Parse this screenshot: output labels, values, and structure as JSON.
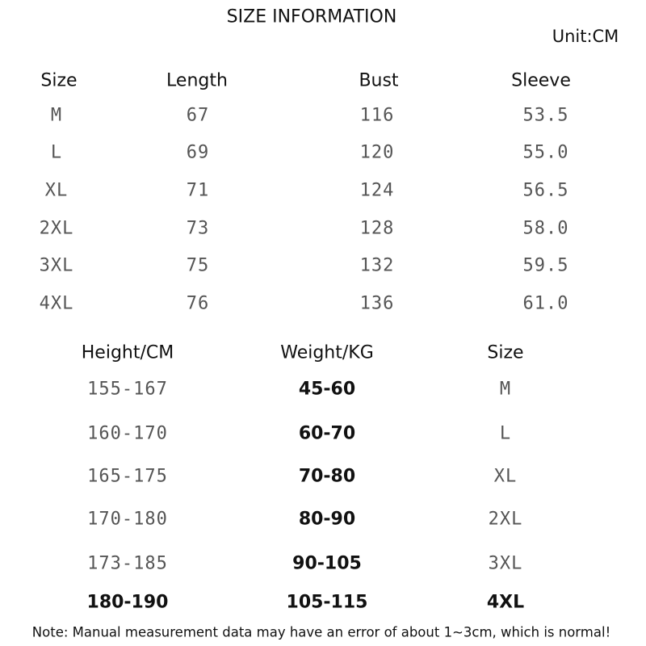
{
  "header": {
    "title": "SIZE INFORMATION",
    "unit": "Unit:CM"
  },
  "table": {
    "columns": [
      "Size",
      "Length",
      "Bust",
      "Sleeve"
    ],
    "rows": [
      [
        "M",
        "67",
        "116",
        "53.5"
      ],
      [
        "L",
        "69",
        "120",
        "55.0"
      ],
      [
        "XL",
        "71",
        "124",
        "56.5"
      ],
      [
        "2XL",
        "73",
        "128",
        "58.0"
      ],
      [
        "3XL",
        "75",
        "132",
        "59.5"
      ],
      [
        "4XL",
        "76",
        "136",
        "61.0"
      ]
    ]
  },
  "guide": {
    "columns": [
      "Height/CM",
      "Weight/KG",
      "Size"
    ],
    "rows": [
      [
        "155-167",
        "45-60",
        "M"
      ],
      [
        "160-170",
        "60-70",
        "L"
      ],
      [
        "165-175",
        "70-80",
        "XL"
      ],
      [
        "170-180",
        "80-90",
        "2XL"
      ],
      [
        "173-185",
        "90-105",
        "3XL"
      ],
      [
        "180-190",
        "105-115",
        "4XL"
      ]
    ]
  },
  "note": "Note: Manual measurement data may have an error of about 1~3cm, which is normal!"
}
